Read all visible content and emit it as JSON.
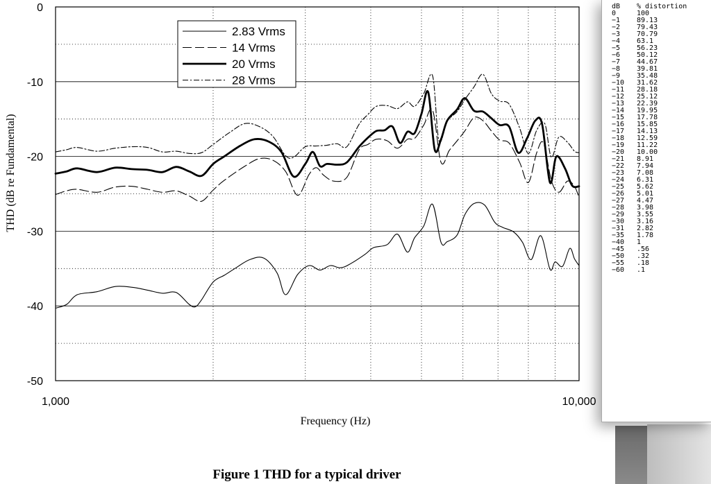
{
  "chart_data": {
    "type": "line",
    "title": "",
    "xlabel": "Frequency (Hz)",
    "ylabel": "THD (dB re Fundamental)",
    "xscale": "log",
    "xlim": [
      1000,
      10000
    ],
    "ylim": [
      -50,
      0
    ],
    "xticks": [
      "1,000",
      "10,000"
    ],
    "yticks": [
      "0",
      "-10",
      "-20",
      "-30",
      "-40",
      "-50"
    ],
    "grid": true,
    "legend_position": "top-left",
    "series": [
      {
        "name": "2.83 Vrms",
        "style": "thin-solid",
        "x": [
          1000,
          1050,
          1100,
          1200,
          1300,
          1400,
          1500,
          1600,
          1700,
          1800,
          1850,
          1900,
          2000,
          2100,
          2200,
          2350,
          2500,
          2650,
          2750,
          2900,
          3050,
          3200,
          3350,
          3500,
          3650,
          3900,
          4050,
          4300,
          4500,
          4700,
          4850,
          5050,
          5250,
          5450,
          5600,
          5850,
          6050,
          6300,
          6600,
          6900,
          7150,
          7500,
          7800,
          8100,
          8450,
          8800,
          9000,
          9300,
          9600,
          9800,
          10000
        ],
        "values": [
          -40.3,
          -39.8,
          -38.5,
          -38.1,
          -37.4,
          -37.5,
          -37.9,
          -38.3,
          -38.2,
          -39.8,
          -40.1,
          -39.2,
          -36.8,
          -35.9,
          -35.0,
          -33.8,
          -33.6,
          -35.6,
          -38.5,
          -35.8,
          -34.6,
          -35.2,
          -34.6,
          -34.9,
          -34.4,
          -33.1,
          -32.2,
          -31.8,
          -30.4,
          -32.8,
          -30.9,
          -29.3,
          -26.4,
          -31.5,
          -31.4,
          -30.5,
          -27.8,
          -26.3,
          -26.5,
          -28.8,
          -29.5,
          -30.1,
          -31.5,
          -33.8,
          -30.6,
          -35.1,
          -34.1,
          -34.7,
          -32.3,
          -33.7,
          -34.6
        ]
      },
      {
        "name": "14 Vrms",
        "style": "long-dash",
        "x": [
          1000,
          1050,
          1100,
          1200,
          1300,
          1400,
          1500,
          1600,
          1700,
          1800,
          1900,
          2000,
          2100,
          2300,
          2450,
          2600,
          2750,
          2900,
          3050,
          3150,
          3250,
          3400,
          3600,
          3800,
          3950,
          4100,
          4300,
          4500,
          4700,
          4850,
          5050,
          5250,
          5450,
          5650,
          5850,
          6050,
          6300,
          6550,
          6800,
          7050,
          7350,
          7700,
          8000,
          8300,
          8550,
          8850,
          9150,
          9500,
          9800,
          10000
        ],
        "values": [
          -25.1,
          -24.6,
          -24.4,
          -24.8,
          -24.1,
          -24.0,
          -24.4,
          -24.8,
          -24.6,
          -25.3,
          -26.0,
          -24.5,
          -23.2,
          -21.3,
          -20.3,
          -20.5,
          -22.0,
          -25.2,
          -22.4,
          -21.5,
          -22.5,
          -23.3,
          -22.8,
          -19.1,
          -18.4,
          -17.7,
          -17.9,
          -18.9,
          -17.7,
          -17.6,
          -15.8,
          -13.8,
          -20.8,
          -19.2,
          -17.9,
          -16.6,
          -14.8,
          -15.2,
          -16.6,
          -17.8,
          -18.2,
          -20.8,
          -23.5,
          -19.5,
          -18.2,
          -23.2,
          -24.8,
          -23.3,
          -24.0,
          -25.5
        ]
      },
      {
        "name": "20 Vrms",
        "style": "thick-solid",
        "x": [
          1000,
          1050,
          1100,
          1200,
          1300,
          1400,
          1500,
          1600,
          1700,
          1800,
          1900,
          2000,
          2100,
          2250,
          2400,
          2550,
          2700,
          2850,
          3000,
          3100,
          3200,
          3300,
          3450,
          3600,
          3800,
          3950,
          4100,
          4250,
          4400,
          4550,
          4700,
          4850,
          5000,
          5150,
          5300,
          5450,
          5600,
          5850,
          6050,
          6300,
          6550,
          6800,
          7050,
          7350,
          7650,
          7950,
          8250,
          8500,
          8800,
          9050,
          9400,
          9700,
          10000
        ],
        "values": [
          -22.3,
          -22.0,
          -21.6,
          -22.1,
          -21.5,
          -21.7,
          -21.8,
          -22.1,
          -21.4,
          -22.0,
          -22.6,
          -21.0,
          -20.0,
          -18.6,
          -17.7,
          -18.0,
          -19.4,
          -22.7,
          -21.0,
          -19.4,
          -21.3,
          -21.0,
          -21.1,
          -20.8,
          -18.7,
          -17.5,
          -16.6,
          -16.5,
          -16.0,
          -18.2,
          -16.7,
          -16.9,
          -14.3,
          -11.4,
          -19.1,
          -17.7,
          -15.2,
          -13.7,
          -12.2,
          -13.9,
          -14.0,
          -14.9,
          -15.8,
          -16.0,
          -19.5,
          -17.6,
          -15.2,
          -15.7,
          -23.5,
          -20.0,
          -21.6,
          -23.9,
          -24.0
        ]
      },
      {
        "name": "28 Vrms",
        "style": "dash-dot",
        "x": [
          1000,
          1050,
          1100,
          1200,
          1300,
          1400,
          1500,
          1600,
          1700,
          1800,
          1900,
          2000,
          2150,
          2300,
          2450,
          2600,
          2750,
          2850,
          3000,
          3150,
          3300,
          3450,
          3600,
          3800,
          3950,
          4100,
          4300,
          4500,
          4700,
          4850,
          5050,
          5250,
          5400,
          5600,
          5850,
          6050,
          6300,
          6550,
          6800,
          7050,
          7350,
          7700,
          8000,
          8300,
          8600,
          8850,
          9150,
          9500,
          9800,
          10000
        ],
        "values": [
          -19.4,
          -19.1,
          -18.8,
          -19.3,
          -18.9,
          -18.7,
          -18.8,
          -19.4,
          -19.3,
          -19.6,
          -19.5,
          -18.4,
          -16.8,
          -15.6,
          -16.0,
          -17.3,
          -19.9,
          -20.1,
          -18.7,
          -18.6,
          -18.5,
          -18.3,
          -18.7,
          -15.7,
          -14.4,
          -13.3,
          -13.2,
          -13.6,
          -12.7,
          -13.3,
          -11.6,
          -9.2,
          -17.9,
          -15.3,
          -14.0,
          -12.4,
          -10.7,
          -9.0,
          -11.6,
          -12.6,
          -13.0,
          -16.2,
          -19.6,
          -16.5,
          -15.6,
          -20.1,
          -17.4,
          -18.1,
          -19.3,
          -19.5
        ]
      }
    ]
  },
  "caption": "Figure 1 THD for a typical driver",
  "distortion_table": {
    "headers": [
      "dB",
      "% distortion"
    ],
    "rows": [
      [
        "0",
        "100"
      ],
      [
        "−1",
        "89.13"
      ],
      [
        "−2",
        "79.43"
      ],
      [
        "−3",
        "70.79"
      ],
      [
        "−4",
        "63.1"
      ],
      [
        "−5",
        "56.23"
      ],
      [
        "−6",
        "50.12"
      ],
      [
        "−7",
        "44.67"
      ],
      [
        "−8",
        "39.81"
      ],
      [
        "−9",
        "35.48"
      ],
      [
        "−10",
        "31.62"
      ],
      [
        "−11",
        "28.18"
      ],
      [
        "−12",
        "25.12"
      ],
      [
        "−13",
        "22.39"
      ],
      [
        "−14",
        "19.95"
      ],
      [
        "−15",
        "17.78"
      ],
      [
        "−16",
        "15.85"
      ],
      [
        "−17",
        "14.13"
      ],
      [
        "−18",
        "12.59"
      ],
      [
        "−19",
        "11.22"
      ],
      [
        "−20",
        "10.00"
      ],
      [
        "−21",
        "8.91"
      ],
      [
        "−22",
        "7.94"
      ],
      [
        "−23",
        "7.08"
      ],
      [
        "−24",
        "6.31"
      ],
      [
        "−25",
        "5.62"
      ],
      [
        "−26",
        "5.01"
      ],
      [
        "−27",
        "4.47"
      ],
      [
        "−28",
        "3.98"
      ],
      [
        "−29",
        "3.55"
      ],
      [
        "−30",
        "3.16"
      ],
      [
        "−31",
        "2.82"
      ],
      [
        "−35",
        "1.78"
      ],
      [
        "−40",
        "1"
      ],
      [
        "−45",
        ".56"
      ],
      [
        "−50",
        ".32"
      ],
      [
        "−55",
        ".18"
      ],
      [
        "−60",
        ".1"
      ]
    ]
  }
}
